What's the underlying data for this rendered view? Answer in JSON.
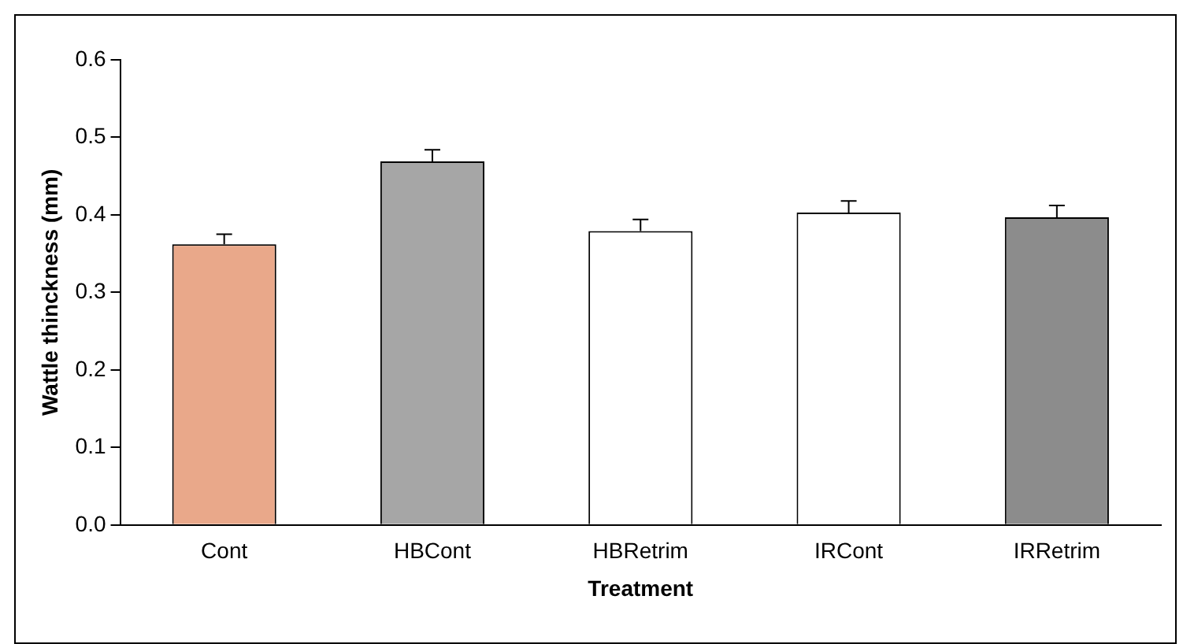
{
  "chart_data": {
    "type": "bar",
    "xlabel": "Treatment",
    "ylabel": "Wattle thinckness (mm)",
    "categories": [
      "Cont",
      "HBCont",
      "HBRetrim",
      "IRCont",
      "IRRetrim"
    ],
    "values": [
      0.362,
      0.469,
      0.379,
      0.403,
      0.397
    ],
    "colors": [
      "#e9a88a",
      "#a6a6a6",
      "#ffffff",
      "#ffffff",
      "#8c8c8c"
    ],
    "errors": [
      [
        0.362,
        0.375
      ],
      [
        0.469,
        0.484
      ],
      [
        0.379,
        0.394
      ],
      [
        0.403,
        0.418
      ],
      [
        0.397,
        0.412
      ]
    ],
    "ylim": [
      0,
      0.6
    ],
    "yticks": [
      {
        "value": 0,
        "label": "0.0"
      },
      {
        "value": 0.1,
        "label": "0.1"
      },
      {
        "value": 0.2,
        "label": "0.2"
      },
      {
        "value": 0.3,
        "label": "0.3"
      },
      {
        "value": 0.4,
        "label": "0.4"
      },
      {
        "value": 0.5,
        "label": "0.5"
      },
      {
        "value": 0.6,
        "label": "0.6"
      }
    ],
    "grid": false,
    "legend": false
  }
}
